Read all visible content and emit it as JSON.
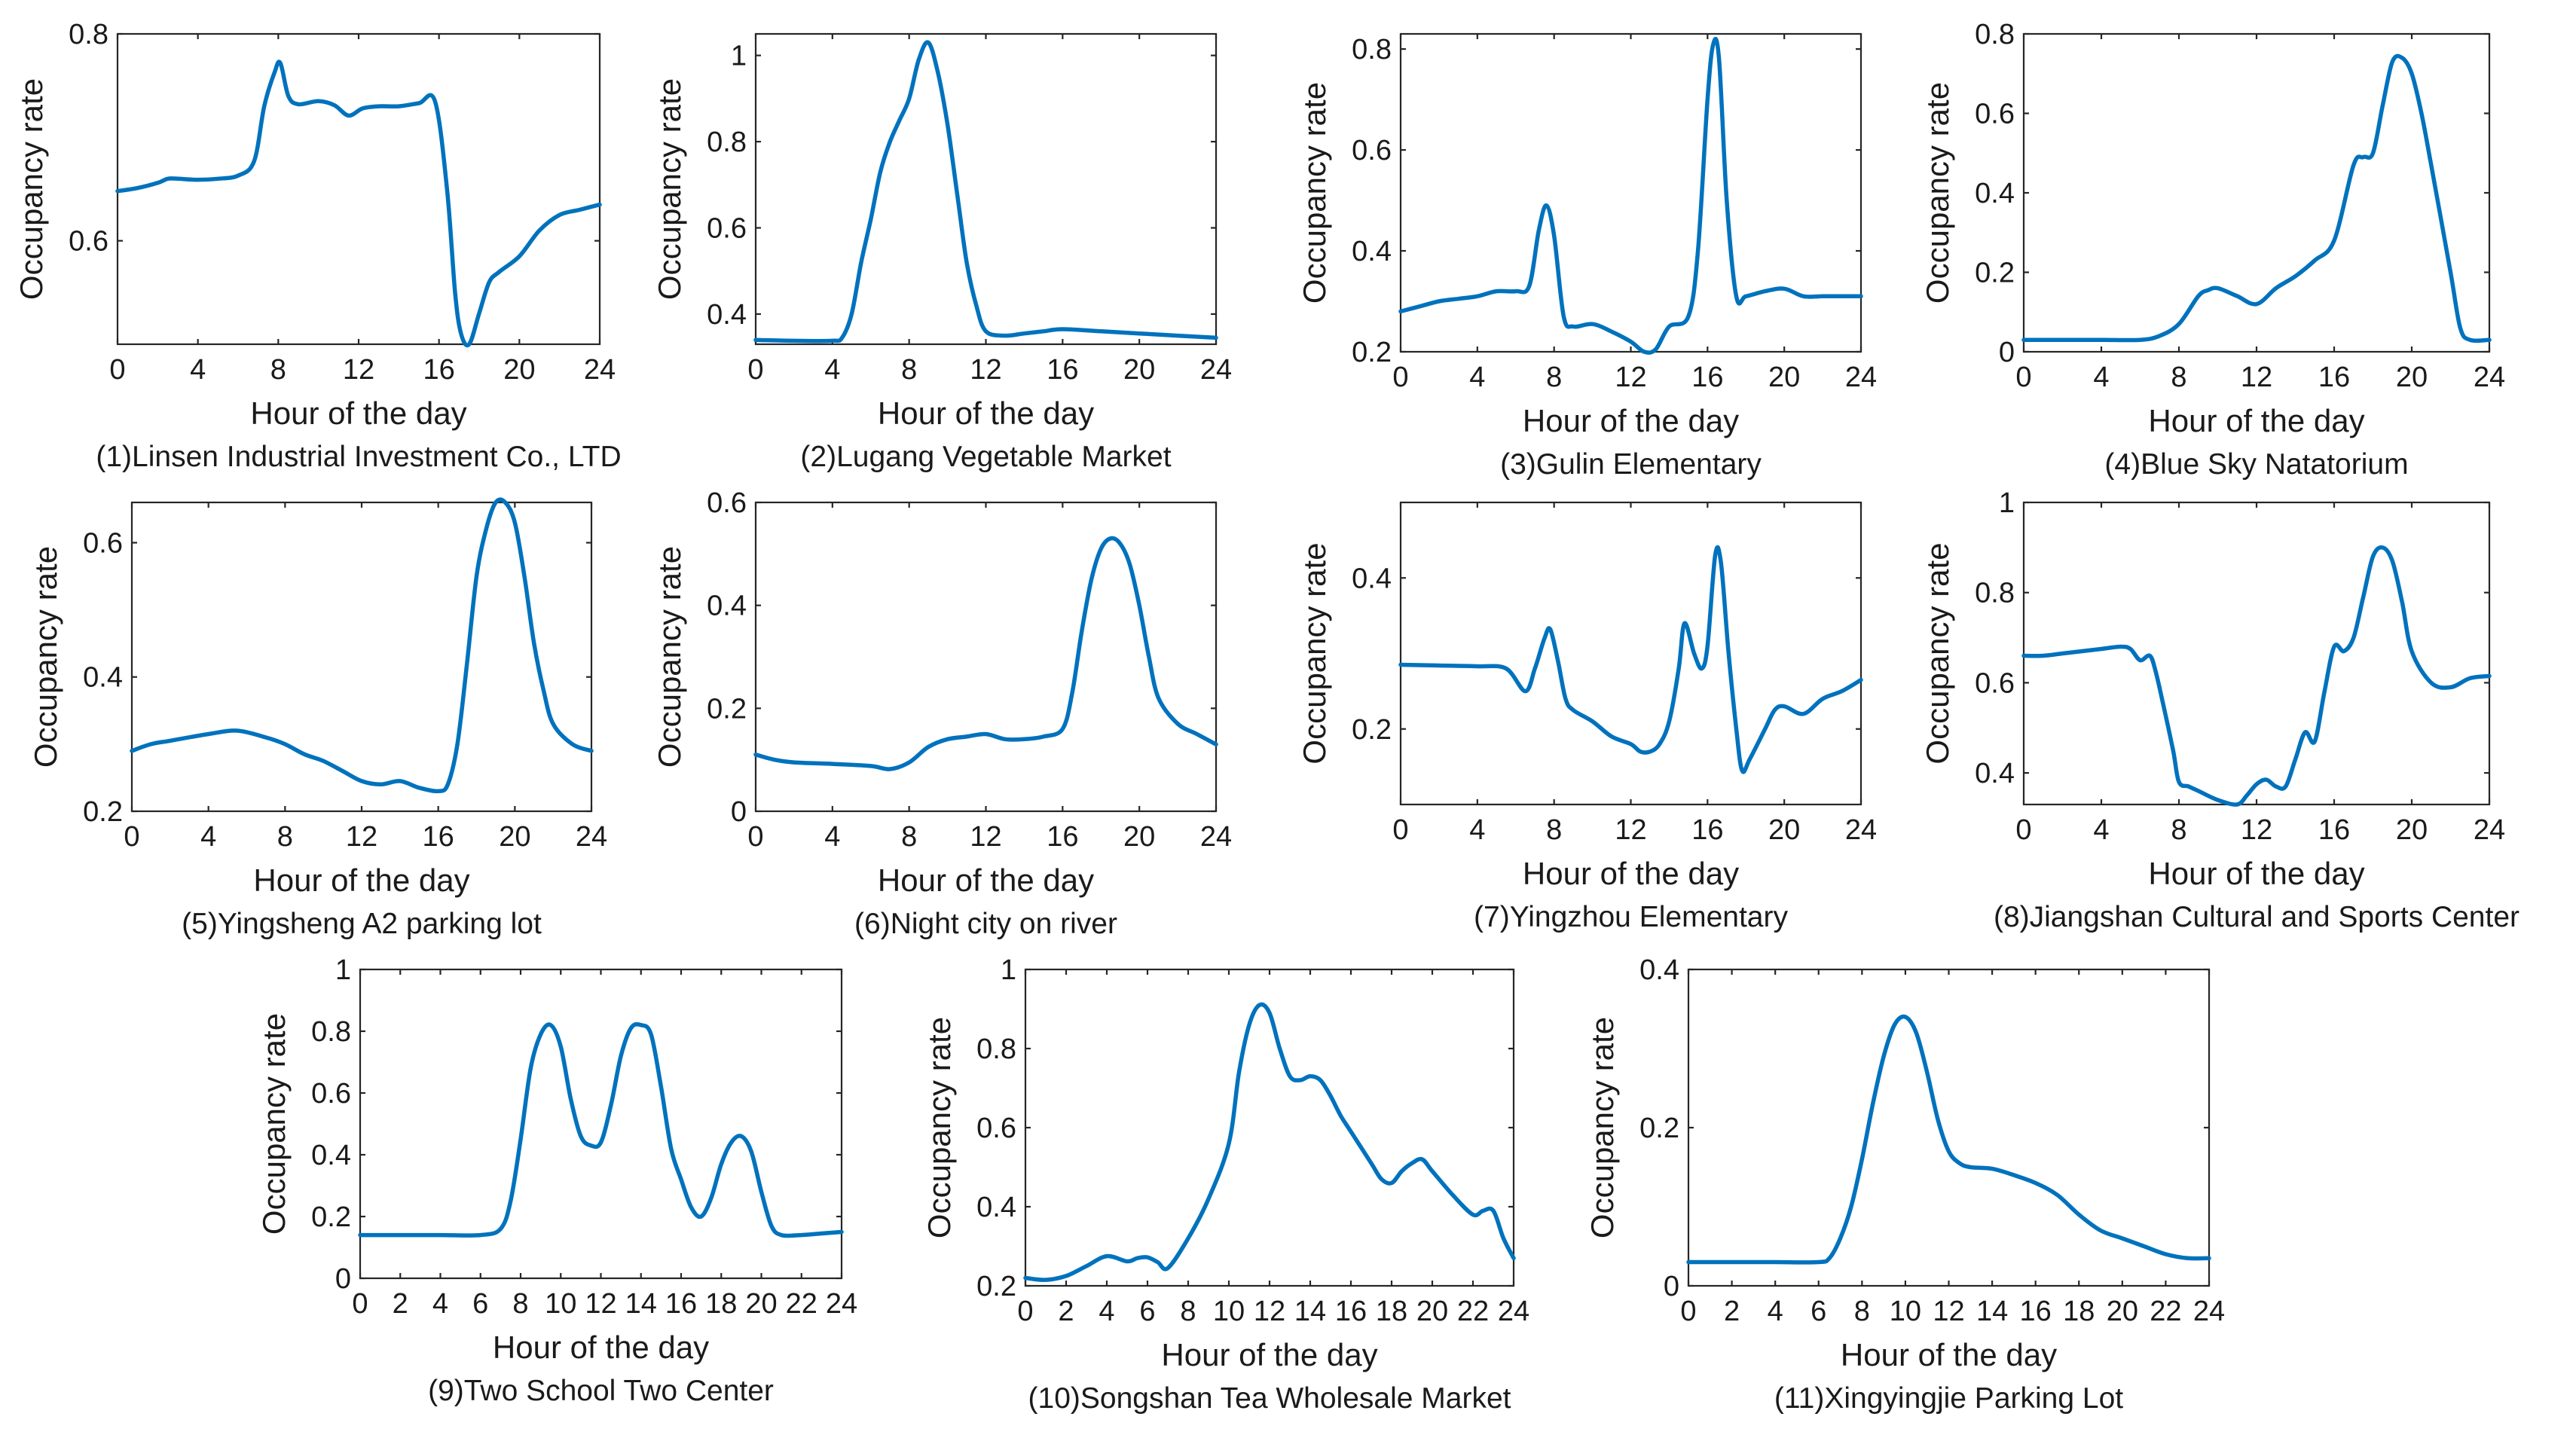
{
  "figure": {
    "background": "#ffffff",
    "line_color": "#0072bd"
  },
  "chart_data": [
    {
      "type": "line",
      "caption": "(1)Linsen Industrial Investment Co., LTD",
      "xlabel": "Hour of the day",
      "ylabel": "Occupancy rate",
      "xlim": [
        0,
        24
      ],
      "ylim": [
        0.5,
        0.8
      ],
      "xticks": [
        0,
        4,
        8,
        12,
        16,
        20,
        24
      ],
      "yticks": [
        0.6,
        0.8
      ],
      "x": [
        0,
        1,
        2,
        2.5,
        3,
        4,
        5,
        6,
        6.8,
        7.3,
        7.8,
        8.1,
        8.5,
        9,
        10,
        10.8,
        11.5,
        12.2,
        13,
        14,
        15,
        15.8,
        16.4,
        16.8,
        17.1,
        17.5,
        18,
        18.5,
        19,
        20,
        21,
        22,
        23,
        24
      ],
      "series": [
        {
          "values": [
            0.648,
            0.651,
            0.656,
            0.66,
            0.66,
            0.659,
            0.66,
            0.663,
            0.677,
            0.73,
            0.762,
            0.772,
            0.74,
            0.732,
            0.735,
            0.731,
            0.721,
            0.728,
            0.73,
            0.73,
            0.733,
            0.735,
            0.65,
            0.55,
            0.51,
            0.5,
            0.53,
            0.56,
            0.57,
            0.585,
            0.61,
            0.625,
            0.63,
            0.635
          ]
        }
      ]
    },
    {
      "type": "line",
      "caption": "(2)Lugang Vegetable Market",
      "xlabel": "Hour of the day",
      "ylabel": "Occupancy rate",
      "xlim": [
        0,
        24
      ],
      "ylim": [
        0.33,
        1.05
      ],
      "xticks": [
        0,
        4,
        8,
        12,
        16,
        20,
        24
      ],
      "yticks": [
        0.4,
        0.6,
        0.8,
        1
      ],
      "x": [
        0,
        2,
        4,
        4.5,
        5,
        5.5,
        6,
        6.5,
        7,
        7.5,
        8,
        8.5,
        9,
        9.5,
        10,
        10.5,
        11,
        11.5,
        12,
        13,
        14,
        15,
        16,
        18,
        20,
        22,
        24
      ],
      "series": [
        {
          "values": [
            0.34,
            0.338,
            0.338,
            0.345,
            0.4,
            0.52,
            0.62,
            0.73,
            0.8,
            0.85,
            0.9,
            0.99,
            1.03,
            0.96,
            0.84,
            0.68,
            0.52,
            0.42,
            0.36,
            0.35,
            0.355,
            0.36,
            0.365,
            0.36,
            0.355,
            0.35,
            0.345
          ]
        }
      ]
    },
    {
      "type": "line",
      "caption": "(3)Gulin Elementary",
      "xlabel": "Hour of the day",
      "ylabel": "Occupancy rate",
      "xlim": [
        0,
        24
      ],
      "ylim": [
        0.2,
        0.83
      ],
      "xticks": [
        0,
        4,
        8,
        12,
        16,
        20,
        24
      ],
      "yticks": [
        0.2,
        0.4,
        0.6,
        0.8
      ],
      "x": [
        0,
        1,
        2,
        3,
        4,
        5,
        6,
        6.7,
        7.2,
        7.6,
        8,
        8.5,
        9,
        10,
        11,
        12,
        12.7,
        13.3,
        14,
        15,
        15.5,
        16,
        16.3,
        16.6,
        17,
        17.5,
        18,
        19,
        20,
        21,
        22,
        23,
        24
      ],
      "series": [
        {
          "values": [
            0.28,
            0.29,
            0.3,
            0.305,
            0.31,
            0.32,
            0.32,
            0.33,
            0.44,
            0.49,
            0.43,
            0.27,
            0.25,
            0.255,
            0.24,
            0.22,
            0.2,
            0.205,
            0.25,
            0.27,
            0.4,
            0.7,
            0.81,
            0.78,
            0.5,
            0.31,
            0.31,
            0.32,
            0.325,
            0.31,
            0.31,
            0.31,
            0.31
          ]
        }
      ]
    },
    {
      "type": "line",
      "caption": "(4)Blue Sky Natatorium",
      "xlabel": "Hour of the day",
      "ylabel": "Occupancy rate",
      "xlim": [
        0,
        24
      ],
      "ylim": [
        0,
        0.8
      ],
      "xticks": [
        0,
        4,
        8,
        12,
        16,
        20,
        24
      ],
      "yticks": [
        0,
        0.2,
        0.4,
        0.6,
        0.8
      ],
      "x": [
        0,
        2,
        4,
        6,
        7,
        8,
        9,
        9.5,
        10,
        11,
        12,
        13,
        14,
        15,
        16,
        17,
        17.5,
        18,
        18.5,
        19,
        19.5,
        20,
        20.5,
        21,
        22,
        22.5,
        23,
        24
      ],
      "series": [
        {
          "values": [
            0.03,
            0.03,
            0.03,
            0.03,
            0.04,
            0.07,
            0.14,
            0.155,
            0.16,
            0.14,
            0.12,
            0.16,
            0.19,
            0.23,
            0.28,
            0.47,
            0.49,
            0.5,
            0.62,
            0.73,
            0.74,
            0.7,
            0.6,
            0.47,
            0.2,
            0.06,
            0.03,
            0.03
          ]
        }
      ]
    },
    {
      "type": "line",
      "caption": "(5)Yingsheng A2 parking lot",
      "xlabel": "Hour of the day",
      "ylabel": "Occupancy rate",
      "xlim": [
        0,
        24
      ],
      "ylim": [
        0.2,
        0.66
      ],
      "xticks": [
        0,
        4,
        8,
        12,
        16,
        20,
        24
      ],
      "yticks": [
        0.2,
        0.4,
        0.6
      ],
      "x": [
        0,
        1,
        2,
        4,
        5.5,
        7,
        8,
        9,
        10,
        11,
        12,
        13,
        14,
        15,
        16,
        16.5,
        17,
        17.5,
        18,
        18.5,
        19,
        19.5,
        20,
        20.5,
        21,
        21.5,
        22,
        23,
        24
      ],
      "series": [
        {
          "values": [
            0.29,
            0.3,
            0.305,
            0.315,
            0.32,
            0.31,
            0.3,
            0.285,
            0.275,
            0.26,
            0.245,
            0.24,
            0.245,
            0.235,
            0.23,
            0.24,
            0.3,
            0.42,
            0.55,
            0.62,
            0.66,
            0.66,
            0.63,
            0.55,
            0.45,
            0.38,
            0.33,
            0.3,
            0.29
          ]
        }
      ]
    },
    {
      "type": "line",
      "caption": "(6)Night city on river",
      "xlabel": "Hour of the day",
      "ylabel": "Occupancy rate",
      "xlim": [
        0,
        24
      ],
      "ylim": [
        0,
        0.6
      ],
      "xticks": [
        0,
        4,
        8,
        12,
        16,
        20,
        24
      ],
      "yticks": [
        0,
        0.2,
        0.4,
        0.6
      ],
      "x": [
        0,
        1,
        2,
        4,
        6,
        7,
        8,
        9,
        10,
        11,
        12,
        13,
        14,
        15,
        16,
        16.5,
        17,
        17.5,
        18,
        18.5,
        19,
        19.5,
        20,
        20.5,
        21,
        22,
        23,
        24
      ],
      "series": [
        {
          "values": [
            0.11,
            0.1,
            0.095,
            0.092,
            0.088,
            0.082,
            0.095,
            0.125,
            0.14,
            0.145,
            0.15,
            0.14,
            0.14,
            0.145,
            0.16,
            0.23,
            0.35,
            0.45,
            0.51,
            0.53,
            0.52,
            0.48,
            0.4,
            0.3,
            0.22,
            0.17,
            0.15,
            0.13
          ]
        }
      ]
    },
    {
      "type": "line",
      "caption": "(7)Yingzhou Elementary",
      "xlabel": "Hour of the day",
      "ylabel": "Occupancy rate",
      "xlim": [
        0,
        24
      ],
      "ylim": [
        0.1,
        0.5
      ],
      "xticks": [
        0,
        4,
        8,
        12,
        16,
        20,
        24
      ],
      "yticks": [
        0.2,
        0.4
      ],
      "x": [
        0,
        2,
        4,
        5.5,
        6.5,
        7,
        7.5,
        7.8,
        8.2,
        8.6,
        9,
        10,
        11,
        12,
        12.5,
        13,
        13.5,
        14,
        14.5,
        14.8,
        15.3,
        15.7,
        16,
        16.4,
        16.7,
        17.1,
        17.5,
        17.8,
        18.2,
        19,
        19.5,
        20,
        21,
        22,
        23,
        24
      ],
      "series": [
        {
          "values": [
            0.285,
            0.284,
            0.283,
            0.28,
            0.25,
            0.28,
            0.32,
            0.332,
            0.29,
            0.24,
            0.225,
            0.21,
            0.19,
            0.18,
            0.17,
            0.17,
            0.18,
            0.21,
            0.28,
            0.34,
            0.3,
            0.28,
            0.31,
            0.43,
            0.42,
            0.3,
            0.2,
            0.145,
            0.16,
            0.2,
            0.225,
            0.23,
            0.22,
            0.24,
            0.25,
            0.265
          ]
        }
      ]
    },
    {
      "type": "line",
      "caption": "(8)Jiangshan Cultural and Sports Center",
      "xlabel": "Hour of the day",
      "ylabel": "Occupancy rate",
      "xlim": [
        0,
        24
      ],
      "ylim": [
        0.33,
        1
      ],
      "xticks": [
        0,
        4,
        8,
        12,
        16,
        20,
        24
      ],
      "yticks": [
        0.4,
        0.6,
        0.8,
        1
      ],
      "x": [
        0,
        1,
        2,
        3,
        4,
        5,
        5.5,
        6,
        6.5,
        6.8,
        7.2,
        7.7,
        8,
        8.5,
        9,
        10,
        11,
        11.5,
        12,
        12.5,
        13,
        13.5,
        14,
        14.5,
        15,
        15.5,
        16,
        16.5,
        17,
        17.5,
        18,
        18.5,
        19,
        19.5,
        20,
        21,
        22,
        23,
        24
      ],
      "series": [
        {
          "values": [
            0.66,
            0.66,
            0.665,
            0.67,
            0.675,
            0.68,
            0.675,
            0.65,
            0.66,
            0.625,
            0.55,
            0.45,
            0.38,
            0.37,
            0.36,
            0.34,
            0.33,
            0.35,
            0.375,
            0.385,
            0.37,
            0.37,
            0.43,
            0.49,
            0.47,
            0.58,
            0.68,
            0.67,
            0.7,
            0.79,
            0.88,
            0.9,
            0.87,
            0.78,
            0.67,
            0.6,
            0.59,
            0.61,
            0.615
          ]
        }
      ]
    },
    {
      "type": "line",
      "caption": "(9)Two School Two Center",
      "xlabel": "Hour of the day",
      "ylabel": "Occupancy rate",
      "xlim": [
        0,
        24
      ],
      "ylim": [
        0,
        1
      ],
      "xticks": [
        0,
        2,
        4,
        6,
        8,
        10,
        12,
        14,
        16,
        18,
        20,
        22,
        24
      ],
      "yticks": [
        0,
        0.2,
        0.4,
        0.6,
        0.8,
        1
      ],
      "x": [
        0,
        2,
        4,
        6,
        7,
        7.5,
        8,
        8.5,
        9,
        9.5,
        10,
        10.5,
        11,
        11.5,
        12,
        12.5,
        13,
        13.5,
        14,
        14.5,
        15,
        15.5,
        16,
        16.5,
        17,
        17.5,
        18,
        18.5,
        19,
        19.5,
        20,
        20.5,
        21,
        22,
        23,
        24
      ],
      "series": [
        {
          "values": [
            0.14,
            0.14,
            0.14,
            0.14,
            0.16,
            0.25,
            0.45,
            0.68,
            0.79,
            0.82,
            0.75,
            0.58,
            0.46,
            0.43,
            0.44,
            0.56,
            0.72,
            0.81,
            0.82,
            0.79,
            0.62,
            0.42,
            0.32,
            0.23,
            0.2,
            0.26,
            0.37,
            0.44,
            0.46,
            0.41,
            0.28,
            0.17,
            0.14,
            0.14,
            0.145,
            0.15
          ]
        }
      ]
    },
    {
      "type": "line",
      "caption": "(10)Songshan Tea Wholesale Market",
      "xlabel": "Hour of the day",
      "ylabel": "Occupancy rate",
      "xlim": [
        0,
        24
      ],
      "ylim": [
        0.2,
        1
      ],
      "xticks": [
        0,
        2,
        4,
        6,
        8,
        10,
        12,
        14,
        16,
        18,
        20,
        22,
        24
      ],
      "yticks": [
        0.2,
        0.4,
        0.6,
        0.8,
        1
      ],
      "x": [
        0,
        1,
        2,
        3,
        4,
        5,
        5.5,
        6,
        6.5,
        7,
        8,
        9,
        10,
        10.5,
        11,
        11.5,
        12,
        12.5,
        13,
        13.5,
        14,
        14.5,
        15,
        15.5,
        16,
        17,
        17.5,
        18,
        18.5,
        19,
        19.5,
        20,
        21,
        22,
        22.5,
        23,
        23.5,
        24
      ],
      "series": [
        {
          "values": [
            0.22,
            0.215,
            0.225,
            0.25,
            0.275,
            0.262,
            0.27,
            0.272,
            0.26,
            0.245,
            0.32,
            0.42,
            0.56,
            0.74,
            0.86,
            0.91,
            0.89,
            0.8,
            0.73,
            0.72,
            0.73,
            0.72,
            0.68,
            0.63,
            0.59,
            0.51,
            0.47,
            0.46,
            0.49,
            0.51,
            0.52,
            0.49,
            0.43,
            0.38,
            0.39,
            0.39,
            0.32,
            0.27
          ]
        }
      ]
    },
    {
      "type": "line",
      "caption": "(11)Xingyingjie Parking Lot",
      "xlabel": "Hour of the day",
      "ylabel": "Occupancy rate",
      "xlim": [
        0,
        24
      ],
      "ylim": [
        0,
        0.4
      ],
      "xticks": [
        0,
        2,
        4,
        6,
        8,
        10,
        12,
        14,
        16,
        18,
        20,
        22,
        24
      ],
      "yticks": [
        0,
        0.2,
        0.4
      ],
      "x": [
        0,
        2,
        4,
        6,
        6.5,
        7,
        7.5,
        8,
        8.5,
        9,
        9.5,
        10,
        10.5,
        11,
        11.5,
        12,
        12.5,
        13,
        14,
        15,
        16,
        17,
        18,
        19,
        20,
        21,
        22,
        23,
        24
      ],
      "series": [
        {
          "values": [
            0.03,
            0.03,
            0.03,
            0.03,
            0.035,
            0.06,
            0.1,
            0.16,
            0.23,
            0.29,
            0.33,
            0.34,
            0.32,
            0.27,
            0.21,
            0.17,
            0.155,
            0.15,
            0.148,
            0.14,
            0.13,
            0.115,
            0.09,
            0.07,
            0.06,
            0.05,
            0.04,
            0.035,
            0.035
          ]
        }
      ]
    }
  ]
}
